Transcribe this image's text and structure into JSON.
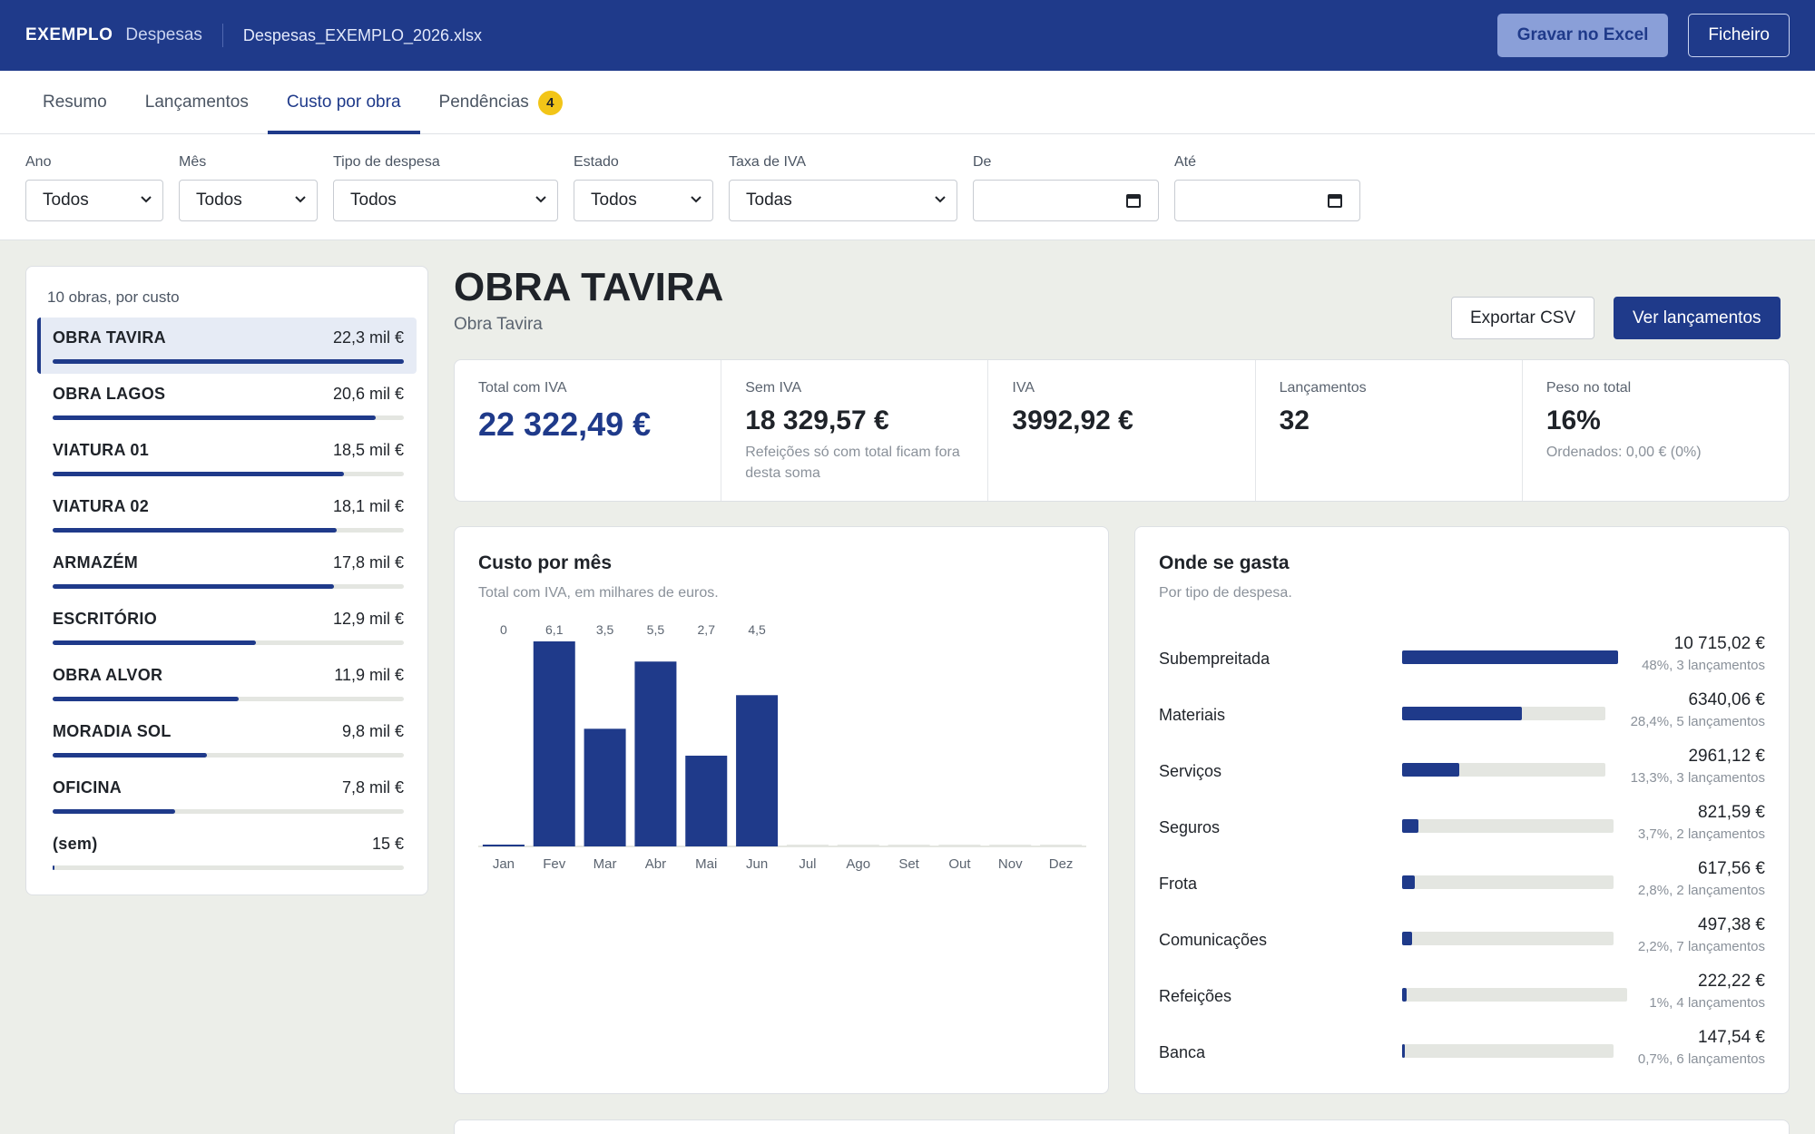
{
  "topbar": {
    "brand": "EXEMPLO",
    "brand_sub": "Despesas",
    "file": "Despesas_EXEMPLO_2026.xlsx",
    "save_label": "Gravar no Excel",
    "file_label": "Ficheiro"
  },
  "tabs": [
    {
      "label": "Resumo"
    },
    {
      "label": "Lançamentos"
    },
    {
      "label": "Custo por obra",
      "active": true
    },
    {
      "label": "Pendências",
      "badge": "4"
    }
  ],
  "filters": {
    "ano": {
      "label": "Ano",
      "value": "Todos"
    },
    "mes": {
      "label": "Mês",
      "value": "Todos"
    },
    "tipo": {
      "label": "Tipo de despesa",
      "value": "Todos"
    },
    "estado": {
      "label": "Estado",
      "value": "Todos"
    },
    "iva": {
      "label": "Taxa de IVA",
      "value": "Todas"
    },
    "de": {
      "label": "De",
      "value": ""
    },
    "ate": {
      "label": "Até",
      "value": ""
    }
  },
  "obras": {
    "heading": "10 obras, por custo",
    "items": [
      {
        "name": "OBRA TAVIRA",
        "value": "22,3 mil €",
        "share": 1.0
      },
      {
        "name": "OBRA LAGOS",
        "value": "20,6 mil €",
        "share": 0.92
      },
      {
        "name": "VIATURA 01",
        "value": "18,5 mil €",
        "share": 0.83
      },
      {
        "name": "VIATURA 02",
        "value": "18,1 mil €",
        "share": 0.81
      },
      {
        "name": "ARMAZÉM",
        "value": "17,8 mil €",
        "share": 0.8
      },
      {
        "name": "ESCRITÓRIO",
        "value": "12,9 mil €",
        "share": 0.58
      },
      {
        "name": "OBRA ALVOR",
        "value": "11,9 mil €",
        "share": 0.53
      },
      {
        "name": "MORADIA SOL",
        "value": "9,8 mil €",
        "share": 0.44
      },
      {
        "name": "OFICINA",
        "value": "7,8 mil €",
        "share": 0.35
      },
      {
        "name": "(sem)",
        "value": "15 €",
        "share": 0.002
      }
    ]
  },
  "selected": {
    "title": "OBRA TAVIRA",
    "subtitle": "Obra Tavira",
    "export_label": "Exportar CSV",
    "view_label": "Ver lançamentos"
  },
  "kpis": [
    {
      "label": "Total com IVA",
      "value": "22 322,49 €",
      "note": ""
    },
    {
      "label": "Sem IVA",
      "value": "18 329,57 €",
      "note": "Refeições só com total ficam fora desta soma"
    },
    {
      "label": "IVA",
      "value": "3992,92 €",
      "note": ""
    },
    {
      "label": "Lançamentos",
      "value": "32",
      "note": ""
    },
    {
      "label": "Peso no total",
      "value": "16%",
      "note": "Ordenados: 0,00 € (0%)"
    }
  ],
  "monthly": {
    "title": "Custo por mês",
    "subtitle": "Total com IVA, em milhares de euros."
  },
  "chart_data": {
    "type": "bar",
    "title": "Custo por mês",
    "subtitle": "Total com IVA, em milhares de euros.",
    "categories": [
      "Jan",
      "Fev",
      "Mar",
      "Abr",
      "Mai",
      "Jun",
      "Jul",
      "Ago",
      "Set",
      "Out",
      "Nov",
      "Dez"
    ],
    "values": [
      0,
      6.1,
      3.5,
      5.5,
      2.7,
      4.5,
      0,
      0,
      0,
      0,
      0,
      0
    ],
    "labels": [
      "0",
      "6,1",
      "3,5",
      "5,5",
      "2,7",
      "4,5",
      "",
      "",
      "",
      "",
      "",
      ""
    ],
    "ylim": [
      0,
      6.1
    ],
    "color": "#1f3a8a"
  },
  "spending": {
    "title": "Onde se gasta",
    "subtitle": "Por tipo de despesa.",
    "items": [
      {
        "name": "Subempreitada",
        "value": "10 715,02 €",
        "meta": "48%, 3 lançamentos",
        "share": 1.0
      },
      {
        "name": "Materiais",
        "value": "6340,06 €",
        "meta": "28,4%, 5 lançamentos",
        "share": 0.59
      },
      {
        "name": "Serviços",
        "value": "2961,12 €",
        "meta": "13,3%, 3 lançamentos",
        "share": 0.28
      },
      {
        "name": "Seguros",
        "value": "821,59 €",
        "meta": "3,7%, 2 lançamentos",
        "share": 0.077
      },
      {
        "name": "Frota",
        "value": "617,56 €",
        "meta": "2,8%, 2 lançamentos",
        "share": 0.058
      },
      {
        "name": "Comunicações",
        "value": "497,38 €",
        "meta": "2,2%, 7 lançamentos",
        "share": 0.046
      },
      {
        "name": "Refeições",
        "value": "222,22 €",
        "meta": "1%, 4 lançamentos",
        "share": 0.021
      },
      {
        "name": "Banca",
        "value": "147,54 €",
        "meta": "0,7%, 6 lançamentos",
        "share": 0.014
      }
    ]
  }
}
